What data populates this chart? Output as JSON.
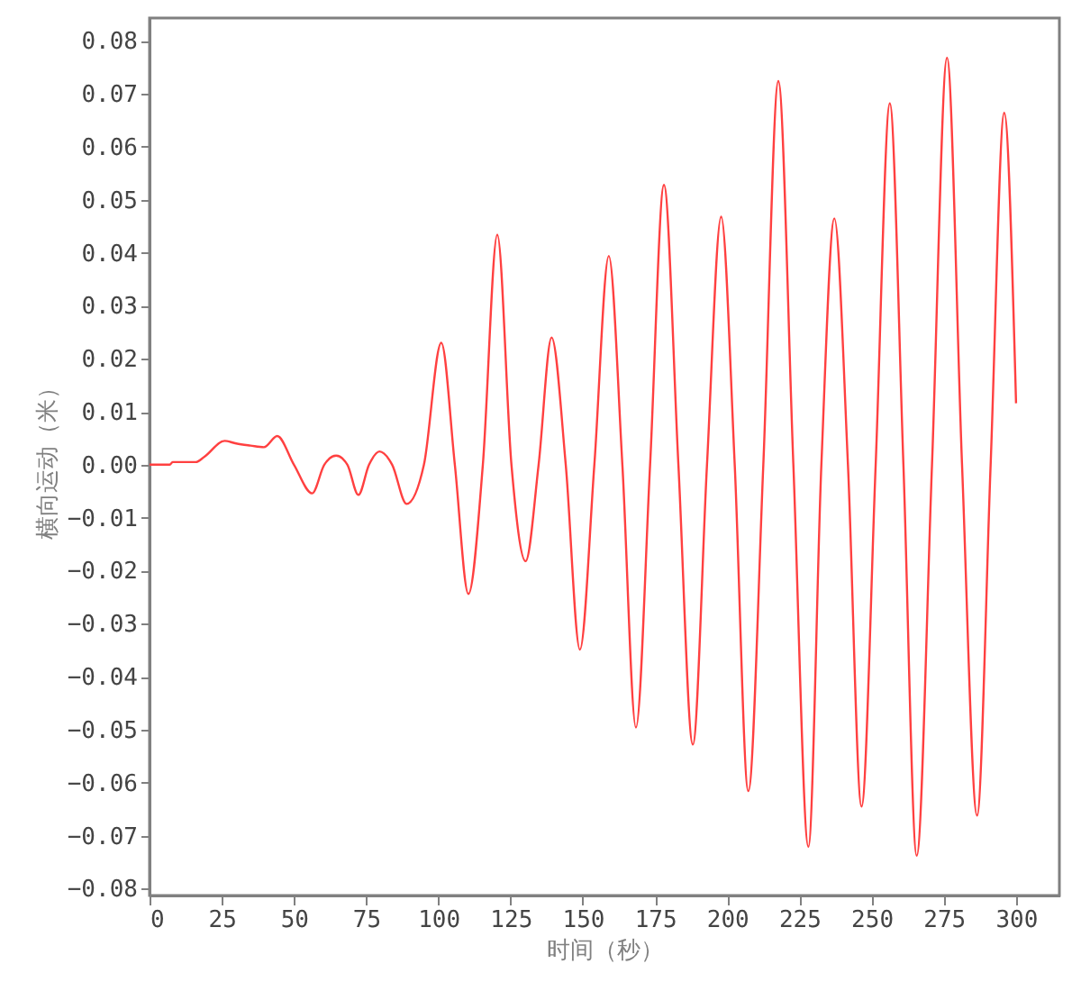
{
  "chart_data": {
    "type": "line",
    "xlabel": "时间（秒）",
    "ylabel": "横向运动（米）",
    "xlim": [
      0,
      315
    ],
    "xticks": [
      0,
      25,
      50,
      75,
      100,
      125,
      150,
      175,
      200,
      225,
      250,
      275,
      300
    ],
    "ylim": [
      -0.0813,
      0.0843
    ],
    "yticks": [
      -0.08,
      -0.07,
      -0.06,
      -0.05,
      -0.04,
      -0.03,
      -0.02,
      -0.01,
      {
        "value": 0,
        "label": "0.00"
      },
      0.01,
      0.02,
      0.03,
      0.04,
      0.05,
      0.06,
      0.07,
      0.08
    ],
    "grid": false,
    "marker": "none",
    "line_style": "solid",
    "series": [
      {
        "color": "#ff4040",
        "x": [
          0,
          7,
          8,
          16,
          19,
          26,
          30,
          35,
          39.6,
          44.2,
          50,
          56.3,
          60.5,
          64.6,
          68.5,
          72.3,
          76,
          79.6,
          84,
          89,
          95,
          101,
          105.7,
          110.4,
          115.4,
          120.4,
          125.3,
          130.2,
          134.7,
          139.2,
          144.1,
          149,
          154,
          159,
          163.7,
          168.4,
          173.3,
          178.1,
          183.1,
          188.1,
          193,
          197.9,
          202.6,
          207.3,
          212.5,
          217.7,
          222.9,
          228.1,
          232.6,
          237.1,
          241.8,
          246.5,
          251.4,
          256.3,
          261,
          265.6,
          270.9,
          276.1,
          281.3,
          286.5,
          291.2,
          295.9,
          300
        ],
        "values": [
          0,
          0,
          0.0005,
          0.0005,
          0.0015,
          0.0045,
          0.004,
          0.0036,
          0.0033,
          0.0054,
          0,
          -0.0054,
          0,
          0.0017,
          0,
          -0.0057,
          0,
          0.0025,
          0,
          -0.0074,
          0,
          0.023,
          0,
          -0.0244,
          0,
          0.0434,
          0,
          -0.0182,
          0,
          0.024,
          0,
          -0.0349,
          0,
          0.0394,
          0,
          -0.0496,
          0,
          0.0528,
          0,
          -0.0528,
          0,
          0.0468,
          0,
          -0.0616,
          0,
          0.0724,
          0,
          -0.0721,
          0,
          0.0465,
          0,
          -0.0645,
          0,
          0.0682,
          0,
          -0.0738,
          0,
          0.0768,
          0,
          -0.0662,
          0,
          0.0664,
          0.0116
        ]
      }
    ]
  }
}
